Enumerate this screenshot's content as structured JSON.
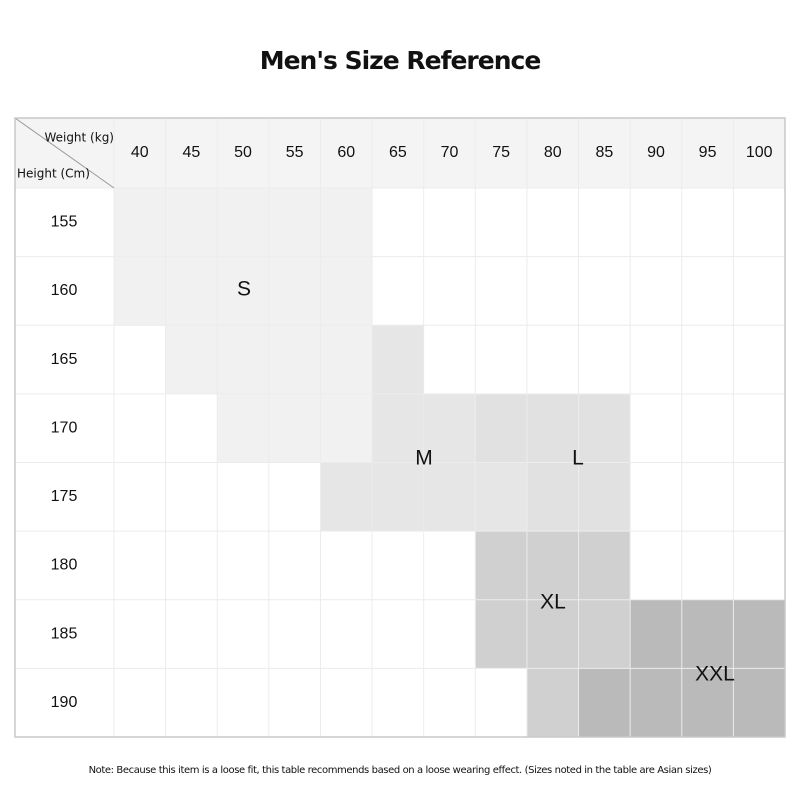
{
  "title": "Men's Size Reference",
  "table": {
    "weight_label": "Weight (kg)",
    "height_label": "Height (Cm)",
    "columns": [
      40,
      45,
      50,
      55,
      60,
      65,
      70,
      75,
      80,
      85,
      90,
      95,
      100
    ],
    "rows": [
      155,
      160,
      165,
      170,
      175,
      180,
      185,
      190
    ],
    "sizes": [
      "S",
      "M",
      "L",
      "XL",
      "XXL"
    ]
  },
  "note": "Note: Because this item is a loose fit, this table recommends based on a loose wearing effect. (Sizes noted in the table are Asian sizes)"
}
